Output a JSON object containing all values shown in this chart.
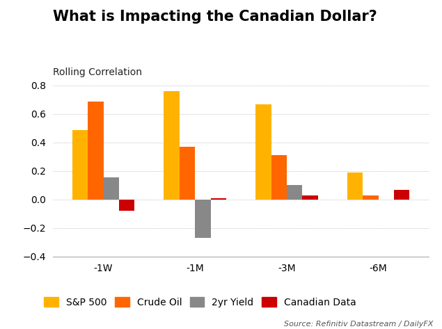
{
  "title": "What is Impacting the Canadian Dollar?",
  "subtitle": "Rolling Correlation",
  "categories": [
    "-1W",
    "-1M",
    "-3M",
    "-6M"
  ],
  "series": {
    "SP500": [
      0.49,
      0.76,
      0.67,
      0.19
    ],
    "CrudeOil": [
      0.69,
      0.37,
      0.31,
      0.03
    ],
    "Yield2yr": [
      0.155,
      -0.27,
      0.1,
      0.0
    ],
    "CanadianData": [
      -0.08,
      0.01,
      0.03,
      0.07
    ]
  },
  "colors": {
    "SP500": "#FFB300",
    "CrudeOil": "#FF6600",
    "Yield2yr": "#888888",
    "CanadianData": "#CC0000"
  },
  "legend_labels": [
    "S&P 500",
    "Crude Oil",
    "2yr Yield",
    "Canadian Data"
  ],
  "ylim": [
    -0.4,
    0.8
  ],
  "yticks": [
    -0.4,
    -0.2,
    0.0,
    0.2,
    0.4,
    0.6,
    0.8
  ],
  "source_text": "Source: Refinitiv Datastream / DailyFX",
  "background_color": "#ffffff",
  "title_fontsize": 15,
  "subtitle_fontsize": 10,
  "axis_fontsize": 10,
  "legend_fontsize": 10
}
